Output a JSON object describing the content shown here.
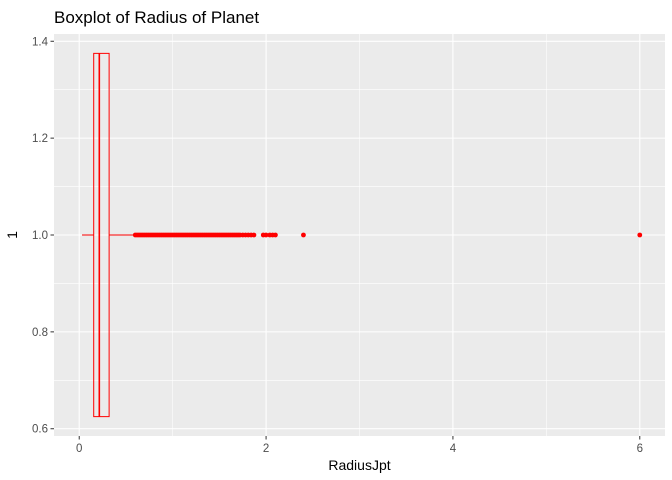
{
  "chart_data": {
    "type": "boxplot",
    "title": "Boxplot of Radius of Planet",
    "xlabel": "RadiusJpt",
    "ylabel": "1",
    "xlim": [
      -0.27,
      6.27
    ],
    "ylim": [
      0.585,
      1.415
    ],
    "x_ticks": [
      0,
      2,
      4,
      6
    ],
    "x_tick_labels": [
      "0",
      "2",
      "4",
      "6"
    ],
    "y_ticks": [
      0.6,
      0.8,
      1.0,
      1.2,
      1.4
    ],
    "y_tick_labels": [
      "0.6",
      "0.8",
      "1.0",
      "1.2",
      "1.4"
    ],
    "grid": true,
    "panel_background": "#ebebeb",
    "grid_color": "#ffffff",
    "box": {
      "y": 1.0,
      "ymin": 0.625,
      "ymax": 1.375,
      "whisker_low": 0.03,
      "q1": 0.155,
      "median": 0.215,
      "q3": 0.32,
      "whisker_high": 0.58,
      "color": "#ff0000"
    },
    "outliers": [
      0.6,
      0.62,
      0.64,
      0.66,
      0.68,
      0.7,
      0.72,
      0.74,
      0.76,
      0.78,
      0.8,
      0.82,
      0.84,
      0.86,
      0.88,
      0.9,
      0.92,
      0.94,
      0.96,
      0.98,
      1.0,
      1.02,
      1.04,
      1.06,
      1.08,
      1.1,
      1.12,
      1.14,
      1.16,
      1.18,
      1.2,
      1.22,
      1.24,
      1.26,
      1.28,
      1.3,
      1.32,
      1.34,
      1.36,
      1.38,
      1.4,
      1.42,
      1.44,
      1.46,
      1.48,
      1.5,
      1.52,
      1.54,
      1.56,
      1.58,
      1.6,
      1.62,
      1.64,
      1.66,
      1.68,
      1.7,
      1.72,
      1.75,
      1.78,
      1.81,
      1.84,
      1.87,
      1.97,
      2.0,
      2.04,
      2.07,
      2.1,
      2.4,
      6.0
    ],
    "outlier_color": "#ff0000"
  }
}
